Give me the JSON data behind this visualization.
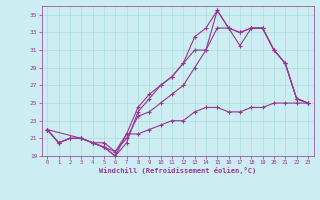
{
  "xlabel": "Windchill (Refroidissement éolien,°C)",
  "bg_color": "#cceef2",
  "grid_color": "#aadddd",
  "line_color": "#993399",
  "line1_x": [
    0,
    1,
    2,
    3,
    4,
    5,
    6,
    7,
    8,
    9,
    10,
    11,
    12,
    13,
    14,
    15,
    16,
    17,
    18,
    19,
    20,
    21,
    22,
    23
  ],
  "line1_y": [
    22,
    20.5,
    21,
    21,
    20.5,
    20,
    19,
    20.5,
    24,
    25.5,
    27,
    28,
    29.5,
    32.5,
    33.5,
    35.5,
    33.5,
    31.5,
    33.5,
    33.5,
    31,
    29.5,
    25.5,
    25
  ],
  "line2_x": [
    0,
    3,
    4,
    5,
    6,
    7,
    8,
    9,
    10,
    11,
    12,
    13,
    14,
    15,
    16,
    17,
    18,
    19,
    20,
    21,
    22,
    23
  ],
  "line2_y": [
    22,
    21,
    20.5,
    20,
    19,
    21.5,
    24.5,
    26,
    27,
    28,
    29.5,
    31,
    31,
    35.5,
    33.5,
    33,
    33.5,
    33.5,
    31,
    29.5,
    25.5,
    25
  ],
  "line3_x": [
    0,
    1,
    2,
    3,
    4,
    5,
    6,
    7,
    8,
    9,
    10,
    11,
    12,
    13,
    14,
    15,
    16,
    17,
    18,
    19,
    20,
    21,
    22,
    23
  ],
  "line3_y": [
    22,
    20.5,
    21,
    21,
    20.5,
    20,
    19.5,
    21,
    23.5,
    24,
    25,
    26,
    27,
    29,
    31,
    33.5,
    33.5,
    33,
    33.5,
    33.5,
    31,
    29.5,
    25.5,
    25
  ],
  "line4_x": [
    0,
    1,
    2,
    3,
    4,
    5,
    6,
    7,
    8,
    9,
    10,
    11,
    12,
    13,
    14,
    15,
    16,
    17,
    18,
    19,
    20,
    21,
    22,
    23
  ],
  "line4_y": [
    22,
    20.5,
    21,
    21,
    20.5,
    20.5,
    19.5,
    21.5,
    21.5,
    22,
    22.5,
    23,
    23,
    24,
    24.5,
    24.5,
    24,
    24,
    24.5,
    24.5,
    25,
    25,
    25,
    25
  ],
  "ylim": [
    19,
    36
  ],
  "xlim": [
    -0.5,
    23.5
  ],
  "yticks": [
    19,
    21,
    23,
    25,
    27,
    29,
    31,
    33,
    35
  ],
  "xticks": [
    0,
    1,
    2,
    3,
    4,
    5,
    6,
    7,
    8,
    9,
    10,
    11,
    12,
    13,
    14,
    15,
    16,
    17,
    18,
    19,
    20,
    21,
    22,
    23
  ],
  "marker": "+"
}
